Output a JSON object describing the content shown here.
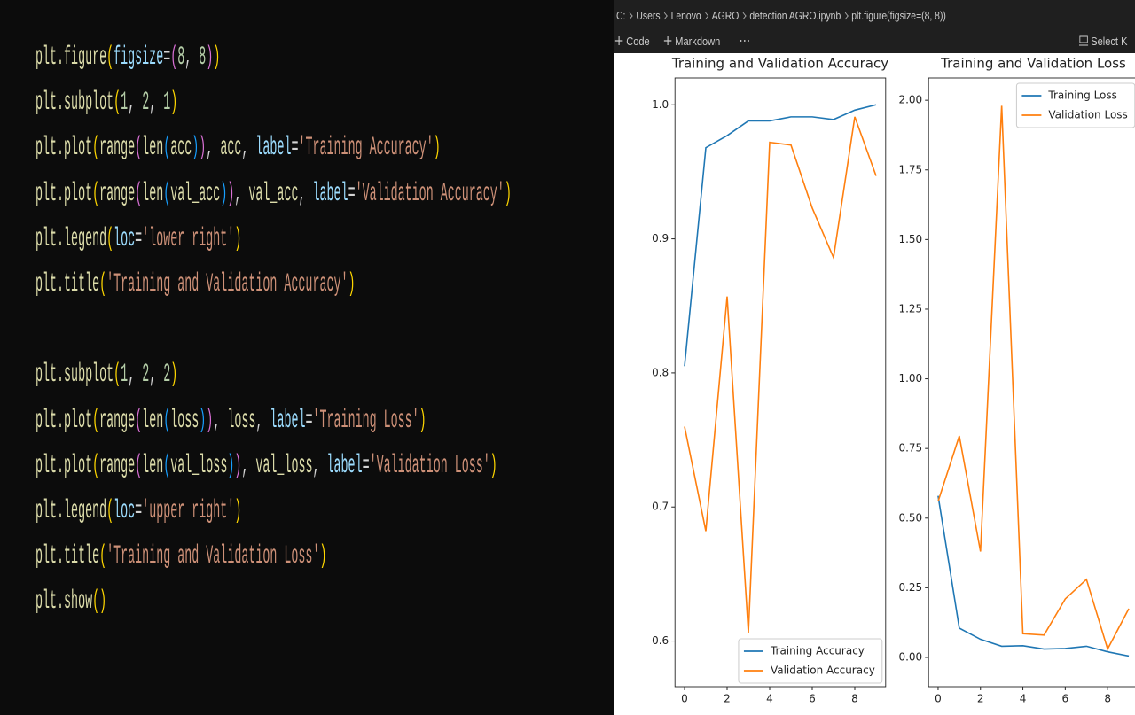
{
  "code": {
    "lines": [
      "plt.figure(figsize=(8, 8))",
      "plt.subplot(1, 2, 1)",
      "plt.plot(range(len(acc)), acc, label='Training Accuracy')",
      "plt.plot(range(len(val_acc)), val_acc, label='Validation Accuracy')",
      "plt.legend(loc='lower right')",
      "plt.title('Training and Validation Accuracy')",
      "plt.subplot(1, 2, 2)",
      "plt.plot(range(len(loss)), loss, label='Training Loss')",
      "plt.plot(range(len(val_loss)), val_loss, label='Validation Loss')",
      "plt.legend(loc='upper right')",
      "plt.title('Training and Validation Loss')",
      "plt.show()"
    ],
    "syntax_colors": {
      "b0": "#ffd700",
      "b1": "#da70d6",
      "b2": "#179fff",
      "str": "#ce9178",
      "num": "#b5cea8",
      "kw": "#9cdcfe",
      "id": "#dcdcaa",
      "op": "#d4d4d4"
    }
  },
  "breadcrumb": [
    "C:",
    "Users",
    "Lenovo",
    "AGRO",
    "detection AGRO.ipynb",
    "plt.figure(figsize=(8, 8))"
  ],
  "toolbar": {
    "code": "Code",
    "markdown": "Markdown",
    "kernel": "Select K"
  },
  "chart_data": [
    {
      "type": "line",
      "title": "Training and Validation Accuracy",
      "legend": "lower right",
      "x": [
        0,
        1,
        2,
        3,
        4,
        5,
        6,
        7,
        8,
        9
      ],
      "series": [
        {
          "name": "Training Accuracy",
          "color": "#1f77b4",
          "values": [
            0.805,
            0.968,
            0.977,
            0.988,
            0.988,
            0.991,
            0.991,
            0.989,
            0.996,
            1.0
          ]
        },
        {
          "name": "Validation Accuracy",
          "color": "#ff7f0e",
          "values": [
            0.76,
            0.682,
            0.857,
            0.606,
            0.972,
            0.97,
            0.923,
            0.886,
            0.991,
            0.947
          ]
        }
      ],
      "xlim": [
        -0.45,
        9.45
      ],
      "xticks": [
        0,
        2,
        4,
        6,
        8
      ],
      "ylim": [
        0.566,
        1.02
      ],
      "yticks": [
        0.6,
        0.7,
        0.8,
        0.9,
        {
          "value": 1,
          "label": "1.0"
        }
      ]
    },
    {
      "type": "line",
      "title": "Training and Validation Loss",
      "legend": "upper right",
      "x": [
        0,
        1,
        2,
        3,
        4,
        5,
        6,
        7,
        8,
        9
      ],
      "series": [
        {
          "name": "Training Loss",
          "color": "#1f77b4",
          "values": [
            0.58,
            0.105,
            0.065,
            0.04,
            0.042,
            0.03,
            0.032,
            0.04,
            0.02,
            0.005
          ]
        },
        {
          "name": "Validation Loss",
          "color": "#ff7f0e",
          "values": [
            0.56,
            0.795,
            0.38,
            1.98,
            0.085,
            0.08,
            0.21,
            0.28,
            0.03,
            0.175
          ]
        }
      ],
      "xlim": [
        -0.45,
        9.45
      ],
      "xticks": [
        0,
        2,
        4,
        6,
        8
      ],
      "ylim": [
        -0.105,
        2.08
      ],
      "yticks": [
        {
          "value": 0,
          "label": "0.00"
        },
        {
          "value": 0.25,
          "label": "0.25"
        },
        {
          "value": 0.5,
          "label": "0.50"
        },
        {
          "value": 0.75,
          "label": "0.75"
        },
        {
          "value": 1,
          "label": "1.00"
        },
        {
          "value": 1.25,
          "label": "1.25"
        },
        {
          "value": 1.5,
          "label": "1.50"
        },
        {
          "value": 1.75,
          "label": "1.75"
        },
        {
          "value": 2,
          "label": "2.00"
        }
      ]
    }
  ]
}
